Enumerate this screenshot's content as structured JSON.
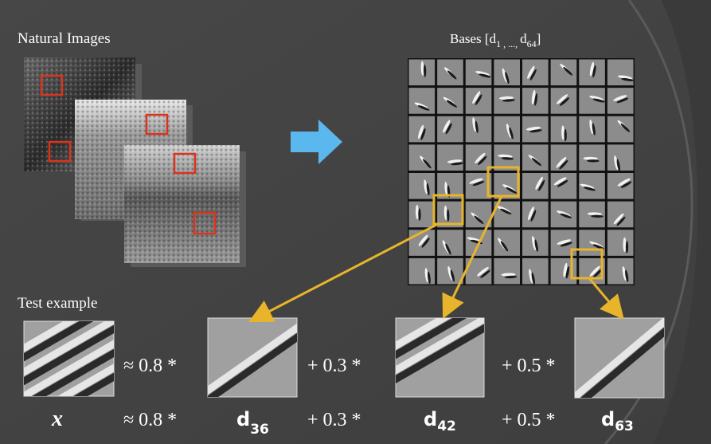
{
  "slide": {
    "natural_images_label": "Natural Images",
    "bases_label": [
      "Bases [d",
      "1 , ..., ",
      "d",
      "64",
      "]"
    ],
    "test_example_label": "Test example",
    "equation_images_row": [
      "≈ 0.8 *",
      "+ 0.3 *",
      "+ 0.5 *"
    ],
    "equation_symbols_row": {
      "x": "x",
      "terms": [
        {
          "coef": "≈ 0.8 *",
          "base": "d",
          "index": "36"
        },
        {
          "coef": "+ 0.3 *",
          "base": "d",
          "index": "42"
        },
        {
          "coef": "+ 0.5 *",
          "base": "d",
          "index": "63"
        }
      ]
    }
  }
}
